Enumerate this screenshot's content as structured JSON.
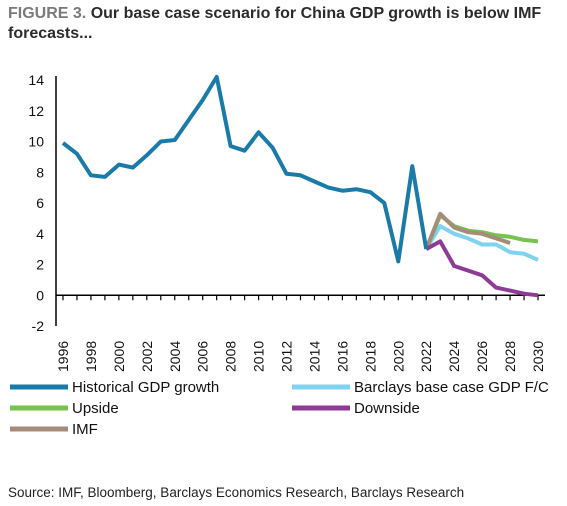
{
  "header": {
    "figure_label": "FIGURE 3.",
    "title": "Our base case scenario for China GDP growth is below IMF forecasts..."
  },
  "footer": {
    "source": "Source: IMF, Bloomberg, Barclays Economics Research, Barclays Research"
  },
  "chart_data": {
    "type": "line",
    "title": "",
    "xlabel": "",
    "ylabel": "",
    "ylim": [
      -2,
      14
    ],
    "yticks": [
      -2,
      0,
      2,
      4,
      6,
      8,
      10,
      12,
      14
    ],
    "xlim": [
      1995.5,
      2030.5
    ],
    "xticks": [
      1996,
      1998,
      2000,
      2002,
      2004,
      2006,
      2008,
      2010,
      2012,
      2014,
      2016,
      2018,
      2020,
      2022,
      2024,
      2026,
      2028,
      2030
    ],
    "grid": false,
    "legend_placement": "bottom",
    "series": [
      {
        "name": "Historical GDP growth",
        "color": "#1a7aa8",
        "x": [
          1996,
          1997,
          1998,
          1999,
          2000,
          2001,
          2002,
          2003,
          2004,
          2005,
          2006,
          2007,
          2008,
          2009,
          2010,
          2011,
          2012,
          2013,
          2014,
          2015,
          2016,
          2017,
          2018,
          2019,
          2020,
          2021,
          2022
        ],
        "y": [
          9.9,
          9.2,
          7.8,
          7.7,
          8.5,
          8.3,
          9.1,
          10.0,
          10.1,
          11.4,
          12.7,
          14.2,
          9.7,
          9.4,
          10.6,
          9.6,
          7.9,
          7.8,
          7.4,
          7.0,
          6.8,
          6.9,
          6.7,
          6.0,
          2.2,
          8.4,
          3.0
        ]
      },
      {
        "name": "Barclays base case GDP F/C",
        "color": "#7fd3ef",
        "x": [
          2022,
          2023,
          2024,
          2025,
          2026,
          2027,
          2028,
          2029,
          2030
        ],
        "y": [
          3.0,
          4.5,
          4.0,
          3.7,
          3.3,
          3.3,
          2.8,
          2.7,
          2.3
        ]
      },
      {
        "name": "Upside",
        "color": "#78c250",
        "x": [
          2022,
          2023,
          2024,
          2025,
          2026,
          2027,
          2028,
          2029,
          2030
        ],
        "y": [
          3.0,
          5.2,
          4.5,
          4.2,
          4.1,
          3.9,
          3.8,
          3.6,
          3.5
        ]
      },
      {
        "name": "Downside",
        "color": "#8d3b94",
        "x": [
          2022,
          2023,
          2024,
          2025,
          2026,
          2027,
          2028,
          2029,
          2030
        ],
        "y": [
          3.0,
          3.5,
          1.9,
          1.6,
          1.3,
          0.5,
          0.3,
          0.1,
          0.0
        ]
      },
      {
        "name": "IMF",
        "color": "#a48b7a",
        "x": [
          2022,
          2023,
          2024,
          2025,
          2026,
          2027,
          2028
        ],
        "y": [
          3.0,
          5.3,
          4.4,
          4.1,
          4.0,
          3.7,
          3.4
        ]
      }
    ]
  }
}
